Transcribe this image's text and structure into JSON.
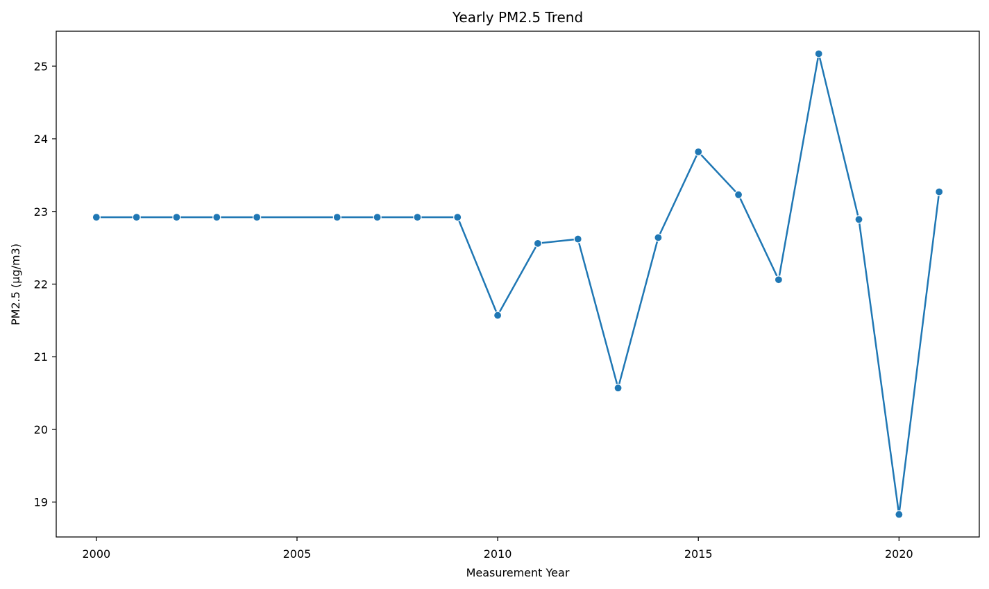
{
  "chart_data": {
    "type": "line",
    "title": "Yearly PM2.5 Trend",
    "xlabel": "Measurement Year",
    "ylabel": "PM2.5 (µg/m3)",
    "xlim": [
      1999,
      2022
    ],
    "ylim": [
      18.52,
      25.48
    ],
    "x_ticks": [
      2000,
      2005,
      2010,
      2015,
      2020
    ],
    "y_ticks": [
      19,
      20,
      21,
      22,
      23,
      24,
      25
    ],
    "grid": false,
    "colors": {
      "line": "#1f77b4",
      "marker_edge": "#ffffff"
    },
    "series": [
      {
        "x": [
          2000,
          2001,
          2002,
          2003,
          2004,
          2006,
          2007,
          2008,
          2009,
          2010,
          2011,
          2012,
          2013,
          2014,
          2015,
          2016,
          2017,
          2018,
          2019,
          2020,
          2021
        ],
        "values": [
          22.92,
          22.92,
          22.92,
          22.92,
          22.92,
          22.92,
          22.92,
          22.92,
          22.92,
          21.57,
          22.56,
          22.62,
          20.57,
          22.64,
          23.82,
          23.23,
          22.06,
          25.17,
          22.89,
          18.83,
          23.27
        ]
      }
    ]
  }
}
